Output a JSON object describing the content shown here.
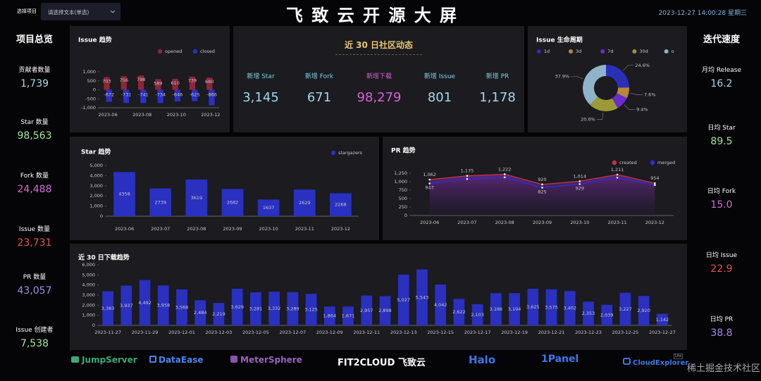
{
  "header": {
    "select_label": "选择项目",
    "select_placeholder": "请选择文本(单选)",
    "title": "飞 致 云 开 源 大 屏",
    "datetime": "2023-12-27 14:00:28 星期三"
  },
  "overview": {
    "title": "项目总览",
    "items": [
      {
        "label": "贡献者数量",
        "value": "1,739"
      },
      {
        "label": "Star 数量",
        "value": "98,563"
      },
      {
        "label": "Fork 数量",
        "value": "24,488"
      },
      {
        "label": "Issue 数量",
        "value": "23,731"
      },
      {
        "label": "PR 数量",
        "value": "43,057"
      },
      {
        "label": "Issue 创建者",
        "value": "7,538"
      }
    ]
  },
  "velocity": {
    "title": "迭代速度",
    "items": [
      {
        "label": "月均 Release",
        "value": "16.2"
      },
      {
        "label": "日均 Star",
        "value": "89.5"
      },
      {
        "label": "日均 Fork",
        "value": "15.0"
      },
      {
        "label": "日均 Issue",
        "value": "22.9"
      },
      {
        "label": "日均 PR",
        "value": "38.8"
      }
    ]
  },
  "community": {
    "title": "近 30 日社区动态",
    "items": [
      {
        "label": "新增 Star",
        "value": "3,145"
      },
      {
        "label": "新增 Fork",
        "value": "671"
      },
      {
        "label": "新增下载",
        "value": "98,279"
      },
      {
        "label": "新增 Issue",
        "value": "801"
      },
      {
        "label": "新增 PR",
        "value": "1,178"
      }
    ]
  },
  "chart_data": [
    {
      "type": "bar",
      "title": "Issue 趋势",
      "categories": [
        "2023-06",
        null,
        "2023-08",
        null,
        "2023-10",
        null,
        "2023-12"
      ],
      "series": [
        {
          "name": "opened",
          "color": "#8e2636",
          "values": [
            703,
            756,
            798,
            589,
            610,
            739,
            680
          ]
        },
        {
          "name": "closed",
          "color": "#2a30c8",
          "values": [
            -672,
            -731,
            -741,
            -734,
            -646,
            -625,
            -866
          ]
        }
      ],
      "ylim": [
        -1000,
        1000
      ],
      "yticks": [
        {
          "value": 1000,
          "label": "1,000"
        },
        500,
        0,
        -500,
        {
          "value": -1000,
          "label": "-1,000"
        }
      ],
      "legend": "top-right"
    },
    {
      "type": "pie",
      "title": "Issue 生命周期",
      "categories": [
        "1d",
        "3d",
        "7d",
        "30d",
        "o"
      ],
      "values": [
        24.6,
        7.6,
        9.4,
        20.6,
        37.9
      ],
      "value_labels": [
        "24.6%",
        "7.6%",
        "9.4%",
        "20.6%",
        "37.9%"
      ],
      "colors": [
        "#2b2fb8",
        "#b8863c",
        "#6a2cd0",
        "#9c9a36",
        "#8fb3c8"
      ],
      "legend": "top"
    },
    {
      "type": "bar",
      "title": "Star 趋势",
      "categories": [
        "2023-06",
        "2023-07",
        "2023-08",
        "2023-09",
        "2023-10",
        "2023-11",
        "2023-12"
      ],
      "series": [
        {
          "name": "stargazers",
          "color": "#2a30c0",
          "values": [
            4358,
            2739,
            3619,
            2682,
            1637,
            2629,
            2268
          ]
        }
      ],
      "ylim": [
        0,
        5000
      ],
      "yticks": [
        {
          "value": 5000,
          "label": "5,000"
        },
        {
          "value": 4000,
          "label": "4,000"
        },
        {
          "value": 3000,
          "label": "3,000"
        },
        {
          "value": 2000,
          "label": "2,000"
        },
        {
          "value": 1000,
          "label": "1,000"
        },
        0
      ],
      "legend": "top-right"
    },
    {
      "type": "line",
      "title": "PR 趋势",
      "categories": [
        "2023-06",
        "2023-07",
        "2023-08",
        "2023-09",
        "2023-10",
        "2023-11",
        "2023-12"
      ],
      "series": [
        {
          "name": "created",
          "color": "#c8323c",
          "area": true,
          "values": [
            1062,
            1175,
            1222,
            920,
            1014,
            1211,
            954
          ],
          "value_labels": [
            "1,062",
            "1,175",
            "1,222",
            "920",
            "1,014",
            "1,211",
            "954"
          ]
        },
        {
          "name": "merged",
          "color": "#2a30d8",
          "values": [
            947,
            1080,
            1130,
            825,
            929,
            1120,
            900
          ],
          "value_labels": [
            "947",
            null,
            null,
            "825",
            "929",
            null,
            null
          ]
        }
      ],
      "ylim": [
        0,
        1250
      ],
      "yticks": [
        {
          "value": 1250,
          "label": "1,250"
        },
        {
          "value": 1000,
          "label": "1,000"
        },
        750,
        500,
        250,
        0
      ],
      "legend": "top-right"
    },
    {
      "type": "bar",
      "title": "近 30 日下载趋势",
      "color": "#2a30c0",
      "categories": [
        "2023-11-27",
        null,
        "2023-11-29",
        null,
        "2023-12-01",
        null,
        "2023-12-03",
        null,
        "2023-12-05",
        null,
        "2023-12-07",
        null,
        "2023-12-09",
        null,
        "2023-12-11",
        null,
        "2023-12-13",
        null,
        "2023-12-15",
        null,
        "2023-12-17",
        null,
        "2023-12-19",
        null,
        "2023-12-21",
        null,
        "2023-12-23",
        null,
        "2023-12-25",
        null,
        "2023-12-27"
      ],
      "values": [
        3383,
        3937,
        4492,
        3958,
        3568,
        2484,
        2219,
        3629,
        3281,
        3332,
        3289,
        3125,
        1864,
        1871,
        2957,
        2898,
        5027,
        5543,
        4042,
        2622,
        2103,
        3186,
        3194,
        3625,
        3575,
        3402,
        2353,
        2039,
        3227,
        2920,
        1142
      ],
      "value_labels": [
        "3,383",
        "3,937",
        "4,492",
        "3,958",
        "3,568",
        "2,484",
        "2,219",
        "3,629",
        "3,281",
        "3,332",
        "3,289",
        "3,125",
        "1,864",
        "1,871",
        "2,957",
        "2,898",
        "5,027",
        "5,543",
        "4,042",
        "2,622",
        "2,103",
        "3,186",
        "3,194",
        "3,625",
        "3,575",
        "3,402",
        "2,353",
        "2,039",
        "3,227",
        "2,920",
        "1,142"
      ],
      "ylim": [
        0,
        6000
      ],
      "yticks": [
        {
          "value": 6000,
          "label": "6,000"
        },
        {
          "value": 5000,
          "label": "5,000"
        },
        {
          "value": 4000,
          "label": "4,000"
        },
        {
          "value": 3000,
          "label": "3,000"
        },
        {
          "value": 2000,
          "label": "2,000"
        },
        {
          "value": 1000,
          "label": "1,000"
        },
        0
      ]
    }
  ],
  "logos": [
    "JumpServer",
    "DataEase",
    "MeterSphere",
    "FIT2CLOUD 飞致云",
    "Halo",
    "1Panel",
    "CloudExplorer"
  ],
  "logo_badge": "Lite",
  "watermark": "稀土掘金技术社区"
}
